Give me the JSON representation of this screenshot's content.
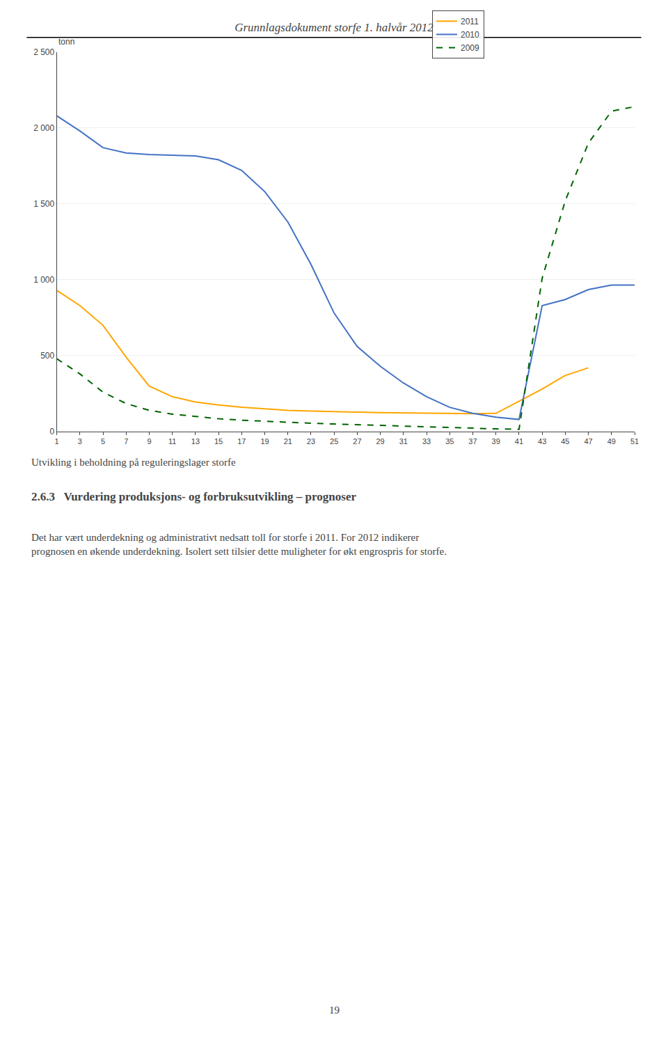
{
  "chart_data": {
    "type": "line",
    "title": "Grunnlagsdokument storfe 1. halvår 2012",
    "ylabel": "tonn",
    "annotations": [
      "Utvikling i beholdning på reguleringslager storfe",
      "2.6.3   Vurdering produksjons- og forbruksutvikling – prognoser",
      "Det har vært underdekning og administrativt nedsatt toll for storfe i 2011. For 2012 indikerer\nprognosen en økende underdekning. Isolert sett tilsier dette muligheter for økt engrospris for storfe.",
      "19"
    ],
    "x": [
      1,
      3,
      5,
      7,
      9,
      11,
      13,
      15,
      17,
      19,
      21,
      23,
      25,
      27,
      29,
      31,
      33,
      35,
      37,
      39,
      41,
      43,
      45,
      47,
      49,
      51
    ],
    "xlim": [
      1,
      51
    ],
    "xticks": [
      1,
      3,
      5,
      7,
      9,
      11,
      13,
      15,
      17,
      19,
      21,
      23,
      25,
      27,
      29,
      31,
      33,
      35,
      37,
      39,
      41,
      43,
      45,
      47,
      49,
      51
    ],
    "ylim": [
      0,
      2500
    ],
    "yticks": [
      0,
      500,
      {
        "value": 1000,
        "label": "1 000"
      },
      {
        "value": 1500,
        "label": "1 500"
      },
      {
        "value": 2000,
        "label": "2 000"
      },
      {
        "value": 2500,
        "label": "2 500"
      }
    ],
    "grid": "y",
    "legend": "upper right",
    "series": [
      {
        "name": "2011",
        "color": "#FFA500",
        "line_style": "solid",
        "values": [
          930,
          830,
          700,
          490,
          300,
          230,
          195,
          175,
          160,
          150,
          140,
          135,
          130,
          128,
          125,
          123,
          122,
          120,
          118,
          120,
          200,
          280,
          370,
          420,
          null,
          null
        ]
      },
      {
        "name": "2010",
        "color": "#4472C4",
        "line_style": "solid",
        "values": [
          2080,
          1980,
          1870,
          1835,
          1825,
          1820,
          1815,
          1790,
          1720,
          1580,
          1380,
          1100,
          780,
          560,
          430,
          320,
          230,
          160,
          120,
          95,
          80,
          830,
          870,
          935,
          965,
          965
        ]
      },
      {
        "name": "2009",
        "color": "#006400",
        "line_style": "dashed",
        "values": [
          480,
          380,
          260,
          185,
          140,
          115,
          100,
          85,
          75,
          68,
          60,
          55,
          50,
          45,
          40,
          35,
          30,
          25,
          20,
          18,
          15,
          1010,
          1520,
          1900,
          2110,
          2140
        ]
      }
    ]
  }
}
